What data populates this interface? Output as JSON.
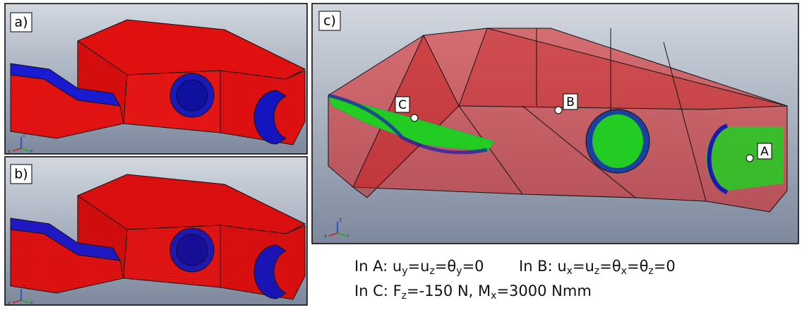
{
  "panels": {
    "a": {
      "label": "a)"
    },
    "b": {
      "label": "b)"
    },
    "c": {
      "label": "c)"
    }
  },
  "points": {
    "A": "A",
    "B": "B",
    "C": "C"
  },
  "triad": {
    "z": "Z",
    "x": "X",
    "y": "Y"
  },
  "captions": [
    {
      "parts": [
        "In A: u",
        "y",
        "=u",
        "z",
        "=θ",
        "y",
        "=0"
      ]
    },
    {
      "parts": [
        "In B: u",
        "x",
        "=u",
        "z",
        "=θ",
        "x",
        "=θ",
        "z",
        "=0"
      ]
    },
    {
      "parts": [
        "In C: F",
        "z",
        "=-150 N, M",
        "x",
        "=3000 Nmm"
      ]
    }
  ]
}
